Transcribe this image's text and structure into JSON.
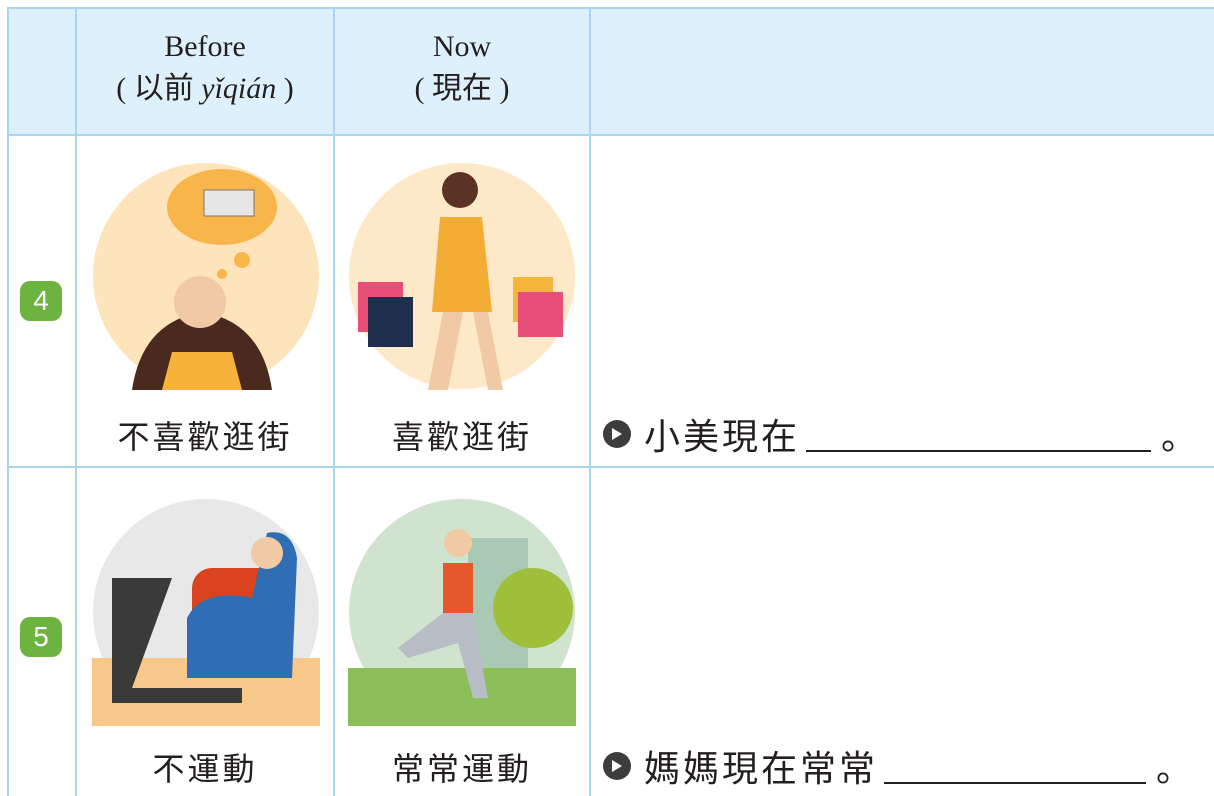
{
  "header": {
    "before": "Before",
    "before_open": "( 以前",
    "before_pinyin": "yǐqián",
    "before_close": ")",
    "now": "Now",
    "now_sub": "( 現在 )"
  },
  "rows": [
    {
      "number": "4",
      "before_caption": "不喜歡逛街",
      "now_caption": "喜歡逛街",
      "sentence": "小美現在",
      "end": "。"
    },
    {
      "number": "5",
      "before_caption": "不運動",
      "now_caption": "常常運動",
      "sentence": "媽媽現在常常",
      "end": "。"
    }
  ]
}
